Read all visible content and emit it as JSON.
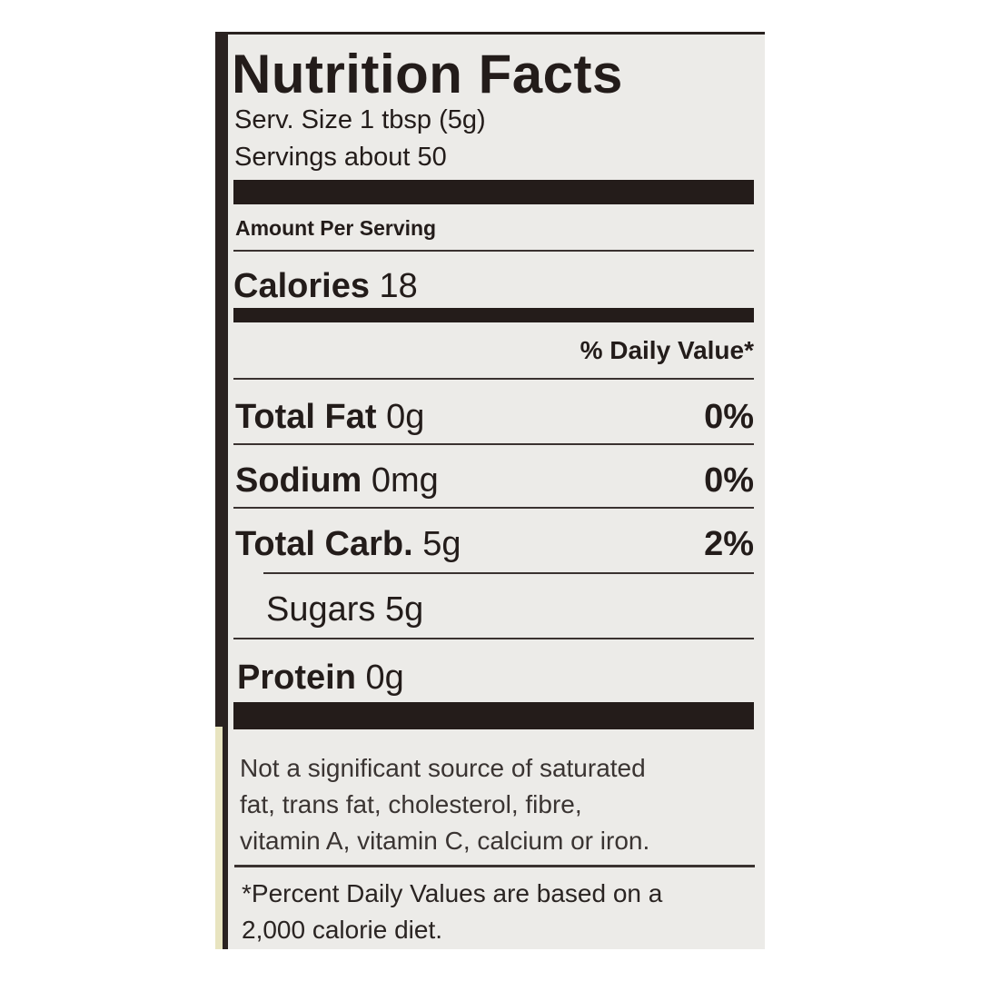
{
  "label": {
    "title": "Nutrition Facts",
    "serving_size": "Serv. Size 1 tbsp (5g)",
    "servings": "Servings about 50",
    "amount_per_serving": "Amount Per Serving",
    "calories_label": "Calories",
    "calories_value": "18",
    "daily_value_header": "% Daily Value*",
    "nutrients": [
      {
        "name": "Total Fat",
        "amount": "0g",
        "dv": "0%"
      },
      {
        "name": "Sodium",
        "amount": "0mg",
        "dv": "0%"
      },
      {
        "name": "Total Carb.",
        "amount": "5g",
        "dv": "2%"
      },
      {
        "name": "Sugars",
        "amount": "5g",
        "dv": ""
      },
      {
        "name": "Protein",
        "amount": "0g",
        "dv": ""
      }
    ],
    "footnote_lines": [
      "Not a significant source of saturated",
      "fat, trans fat, cholesterol, fibre,",
      "vitamin A, vitamin C, calcium or iron."
    ],
    "dv_note_lines": [
      "*Percent Daily Values are based on a",
      "2,000 calorie diet."
    ]
  }
}
